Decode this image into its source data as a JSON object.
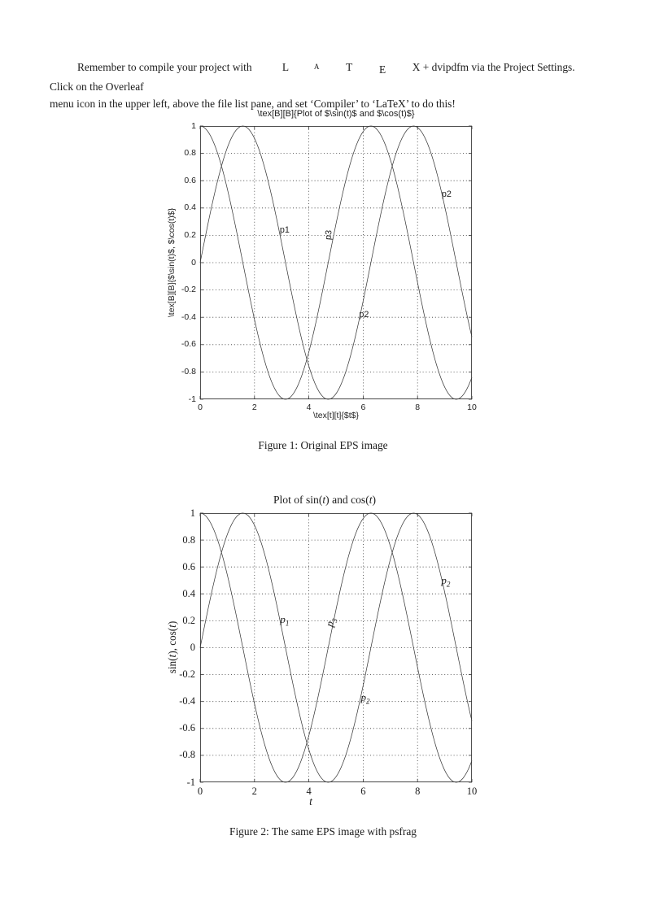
{
  "intro": {
    "before_logo": "Remember to compile your project with ",
    "logo": {
      "L": "L",
      "A": "A",
      "T": "T",
      "E": "E",
      "X": "X"
    },
    "line1_rest": " + dvipdfm via the Project Settings. Click on the Overleaf",
    "line2": "menu icon in the upper left, above the file list pane, and set ‘Compiler’ to ‘LaTeX’ to do this!"
  },
  "figure1": {
    "caption": "Figure 1: Original EPS image"
  },
  "figure2": {
    "title_parts": {
      "p0": "Plot of sin(",
      "t1": "t",
      "p1": ") and cos(",
      "t2": "t",
      "p2": ")"
    },
    "ylabel_parts": {
      "p0": "sin(",
      "t1": "t",
      "p1": "), cos(",
      "t2": "t",
      "p2": ")"
    },
    "xlabel": "t",
    "caption": "Figure 2: The same EPS image with psfrag"
  },
  "chart_data": [
    {
      "type": "line",
      "title": "\\tex[B][B]{Plot of $\\sin(t)$ and $\\cos(t)$}",
      "xlabel": "\\tex[t][t]{$t$}",
      "ylabel": "\\tex[B][B]{$\\sin(t)$, $\\cos(t)$}",
      "xlim": [
        0,
        10
      ],
      "ylim": [
        -1,
        1
      ],
      "x_ticks": [
        "0",
        "2",
        "4",
        "6",
        "8",
        "10"
      ],
      "y_ticks": [
        "1",
        "0.8",
        "0.6",
        "0.4",
        "0.2",
        "0",
        "-0.2",
        "-0.4",
        "-0.6",
        "-0.8",
        "-1"
      ],
      "grid": true,
      "legend": "none",
      "series": [
        {
          "name": "sin(t)",
          "fn": "sin",
          "t_start": 0,
          "t_end": 10
        },
        {
          "name": "cos(t)",
          "fn": "cos",
          "t_start": 0,
          "t_end": 10
        }
      ],
      "annotations": [
        {
          "text": "p1",
          "x": 3.11,
          "y": 0.24,
          "rot": 0
        },
        {
          "text": "p3",
          "x": 4.73,
          "y": 0.2,
          "rot": -85
        },
        {
          "text": "p2",
          "x": 9.07,
          "y": 0.5,
          "rot": 0
        },
        {
          "text": "p2",
          "x": 6.03,
          "y": -0.38,
          "rot": 0
        }
      ]
    },
    {
      "type": "line",
      "title": "Plot of sin(t) and cos(t)",
      "xlabel": "t",
      "ylabel": "sin(t), cos(t)",
      "xlim": [
        0,
        10
      ],
      "ylim": [
        -1,
        1
      ],
      "x_ticks": [
        "0",
        "2",
        "4",
        "6",
        "8",
        "10"
      ],
      "y_ticks": [
        "1",
        "0.8",
        "0.6",
        "0.4",
        "0.2",
        "0",
        "-0.2",
        "-0.4",
        "-0.6",
        "-0.8",
        "-1"
      ],
      "grid": true,
      "legend": "none",
      "series": [
        {
          "name": "sin(t)",
          "fn": "sin",
          "t_start": 0,
          "t_end": 10
        },
        {
          "name": "cos(t)",
          "fn": "cos",
          "t_start": 0,
          "t_end": 10
        }
      ],
      "annotations": [
        {
          "base": "p",
          "sub": "1",
          "x": 3.11,
          "y": 0.21,
          "rot": 0
        },
        {
          "base": "p",
          "sub": "3",
          "x": 4.79,
          "y": 0.19,
          "rot": -76
        },
        {
          "base": "p",
          "sub": "2",
          "x": 9.04,
          "y": 0.5,
          "rot": 0
        },
        {
          "base": "p",
          "sub": "2",
          "x": 6.08,
          "y": -0.37,
          "rot": 0
        }
      ]
    }
  ]
}
